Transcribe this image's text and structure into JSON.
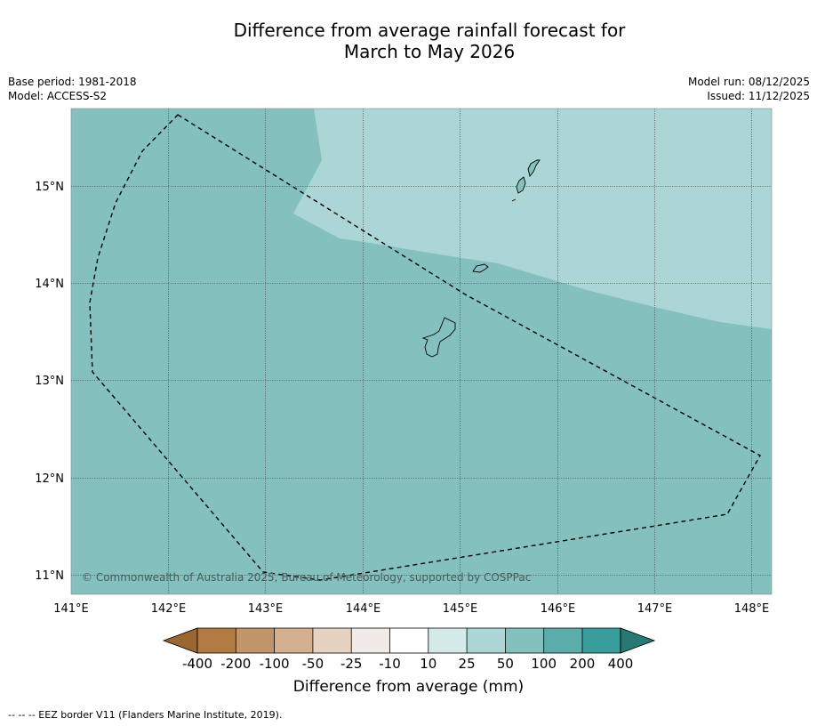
{
  "title": {
    "line1": "Difference from average rainfall forecast for",
    "line2": "March to May 2026"
  },
  "meta": {
    "base_period": "Base period: 1981-2018",
    "model": "Model: ACCESS-S2",
    "model_run": "Model run: 08/12/2025",
    "issued": "Issued: 11/12/2025"
  },
  "map": {
    "lon_labels": [
      "141°E",
      "142°E",
      "143°E",
      "144°E",
      "145°E",
      "146°E",
      "147°E",
      "148°E"
    ],
    "lat_labels": [
      "15°N",
      "14°N",
      "13°N",
      "12°N",
      "11°N"
    ],
    "copyright": "© Commonwealth of Australia 2025, Bureau of Meteorology, supported by COSPPac",
    "colors": {
      "anomaly_25_50": "#acd6d5",
      "anomaly_50_100": "#84c0be"
    }
  },
  "colorbar": {
    "ticks": [
      "-400",
      "-200",
      "-100",
      "-50",
      "-25",
      "-10",
      "10",
      "25",
      "50",
      "100",
      "200",
      "400"
    ],
    "colors": [
      "#9c6632",
      "#b07a41",
      "#c1946a",
      "#d4b091",
      "#e6d2c0",
      "#f1eae6",
      "#ffffff",
      "#d4eae8",
      "#acd6d5",
      "#84c0be",
      "#5bacab",
      "#379c9a",
      "#267975"
    ],
    "title": "Difference from average (mm)"
  },
  "footnote": "--  --  -- EEZ border V11 (Flanders Marine Institute, 2019)."
}
